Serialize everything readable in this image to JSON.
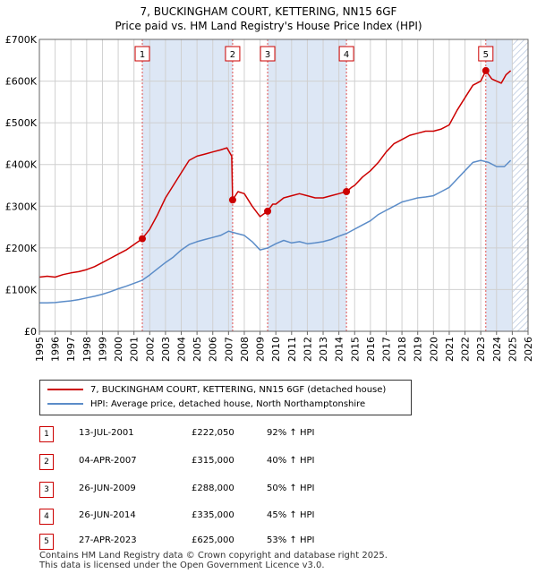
{
  "chart_data": {
    "type": "line",
    "title": "7, BUCKINGHAM COURT, KETTERING, NN15 6GF",
    "subtitle": "Price paid vs. HM Land Registry's House Price Index (HPI)",
    "xlabel": "",
    "ylabel": "",
    "xlim": [
      1995,
      2026
    ],
    "ylim": [
      0,
      700000
    ],
    "x_ticks": [
      "1995",
      "1996",
      "1997",
      "1998",
      "1999",
      "2000",
      "2001",
      "2002",
      "2003",
      "2004",
      "2005",
      "2006",
      "2007",
      "2008",
      "2009",
      "2010",
      "2011",
      "2012",
      "2013",
      "2014",
      "2015",
      "2016",
      "2017",
      "2018",
      "2019",
      "2020",
      "2021",
      "2022",
      "2023",
      "2024",
      "2025",
      "2026"
    ],
    "y_ticks": [
      {
        "value": 0,
        "label": "£0"
      },
      {
        "value": 100000,
        "label": "£100K"
      },
      {
        "value": 200000,
        "label": "£200K"
      },
      {
        "value": 300000,
        "label": "£300K"
      },
      {
        "value": 400000,
        "label": "£400K"
      },
      {
        "value": 500000,
        "label": "£500K"
      },
      {
        "value": 600000,
        "label": "£600K"
      },
      {
        "value": 700000,
        "label": "£700K"
      }
    ],
    "grid": true,
    "shaded_ranges": [
      [
        2001.53,
        2007.26
      ],
      [
        2009.48,
        2014.48
      ],
      [
        2023.32,
        2025.0
      ]
    ],
    "hatched_from": 2025.0,
    "colors": {
      "property": "#cc0000",
      "hpi": "#5b8cc8",
      "shade": "#dde7f5",
      "grid": "#d0d0d0",
      "vline": "#e05050"
    },
    "series": [
      {
        "name": "7, BUCKINGHAM COURT, KETTERING, NN15 6GF (detached house)",
        "x": [
          1995.0,
          1995.5,
          1996.0,
          1996.5,
          1997.0,
          1997.5,
          1998.0,
          1998.5,
          1999.0,
          1999.5,
          2000.0,
          2000.5,
          2001.0,
          2001.53,
          2002.0,
          2002.5,
          2003.0,
          2003.5,
          2004.0,
          2004.5,
          2005.0,
          2005.5,
          2006.0,
          2006.5,
          2006.9,
          2007.2,
          2007.26,
          2007.6,
          2008.0,
          2008.5,
          2009.0,
          2009.48,
          2009.8,
          2010.0,
          2010.5,
          2011.0,
          2011.5,
          2012.0,
          2012.5,
          2013.0,
          2013.5,
          2014.0,
          2014.48,
          2014.8,
          2015.0,
          2015.5,
          2016.0,
          2016.5,
          2017.0,
          2017.5,
          2018.0,
          2018.5,
          2019.0,
          2019.5,
          2020.0,
          2020.5,
          2021.0,
          2021.5,
          2022.0,
          2022.5,
          2023.0,
          2023.32,
          2023.7,
          2024.0,
          2024.3,
          2024.6,
          2024.9
        ],
        "values": [
          130000,
          132000,
          130000,
          136000,
          140000,
          143000,
          148000,
          155000,
          165000,
          175000,
          185000,
          195000,
          208000,
          222050,
          245000,
          280000,
          320000,
          350000,
          380000,
          410000,
          420000,
          425000,
          430000,
          435000,
          440000,
          420000,
          315000,
          335000,
          330000,
          300000,
          275000,
          288000,
          305000,
          305000,
          320000,
          325000,
          330000,
          325000,
          320000,
          320000,
          325000,
          330000,
          335000,
          345000,
          350000,
          370000,
          385000,
          405000,
          430000,
          450000,
          460000,
          470000,
          475000,
          480000,
          480000,
          485000,
          495000,
          530000,
          560000,
          590000,
          600000,
          625000,
          605000,
          600000,
          595000,
          615000,
          625000
        ]
      },
      {
        "name": "HPI: Average price, detached house, North Northamptonshire",
        "x": [
          1995.0,
          1995.5,
          1996.0,
          1996.5,
          1997.0,
          1997.5,
          1998.0,
          1998.5,
          1999.0,
          1999.5,
          2000.0,
          2000.5,
          2001.0,
          2001.5,
          2002.0,
          2002.5,
          2003.0,
          2003.5,
          2004.0,
          2004.5,
          2005.0,
          2005.5,
          2006.0,
          2006.5,
          2007.0,
          2007.5,
          2008.0,
          2008.5,
          2009.0,
          2009.5,
          2010.0,
          2010.5,
          2011.0,
          2011.5,
          2012.0,
          2012.5,
          2013.0,
          2013.5,
          2014.0,
          2014.5,
          2015.0,
          2015.5,
          2016.0,
          2016.5,
          2017.0,
          2017.5,
          2018.0,
          2018.5,
          2019.0,
          2019.5,
          2020.0,
          2020.5,
          2021.0,
          2021.5,
          2022.0,
          2022.5,
          2023.0,
          2023.5,
          2024.0,
          2024.5,
          2024.9
        ],
        "values": [
          68000,
          68000,
          69000,
          71000,
          73000,
          76000,
          80000,
          84000,
          89000,
          95000,
          102000,
          108000,
          115000,
          122000,
          135000,
          150000,
          165000,
          178000,
          195000,
          208000,
          215000,
          220000,
          225000,
          230000,
          240000,
          235000,
          230000,
          215000,
          195000,
          200000,
          210000,
          218000,
          212000,
          215000,
          210000,
          212000,
          215000,
          220000,
          228000,
          235000,
          245000,
          255000,
          265000,
          280000,
          290000,
          300000,
          310000,
          315000,
          320000,
          322000,
          325000,
          335000,
          345000,
          365000,
          385000,
          405000,
          410000,
          405000,
          395000,
          395000,
          410000
        ]
      }
    ],
    "sales": [
      {
        "num": "1",
        "x": 2001.53,
        "value": 222050,
        "date": "13-JUL-2001",
        "price": "£222,050",
        "hpi": "92% ↑ HPI"
      },
      {
        "num": "2",
        "x": 2007.26,
        "value": 315000,
        "date": "04-APR-2007",
        "price": "£315,000",
        "hpi": "40% ↑ HPI"
      },
      {
        "num": "3",
        "x": 2009.48,
        "value": 288000,
        "date": "26-JUN-2009",
        "price": "£288,000",
        "hpi": "50% ↑ HPI"
      },
      {
        "num": "4",
        "x": 2014.48,
        "value": 335000,
        "date": "26-JUN-2014",
        "price": "£335,000",
        "hpi": "45% ↑ HPI"
      },
      {
        "num": "5",
        "x": 2023.32,
        "value": 625000,
        "date": "27-APR-2023",
        "price": "£625,000",
        "hpi": "53% ↑ HPI"
      }
    ]
  },
  "legend": {
    "property_label": "7, BUCKINGHAM COURT, KETTERING, NN15 6GF (detached house)",
    "hpi_label": "HPI: Average price, detached house, North Northamptonshire"
  },
  "footer": {
    "line1": "Contains HM Land Registry data © Crown copyright and database right 2025.",
    "line2": "This data is licensed under the Open Government Licence v3.0."
  }
}
